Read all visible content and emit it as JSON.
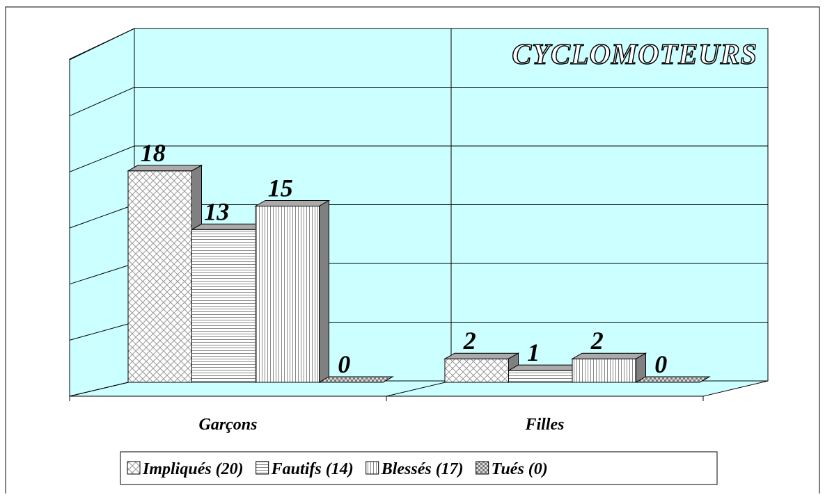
{
  "chart_data": {
    "type": "bar3d",
    "title": "CYCLOMOTEURS",
    "categories": [
      "Garçons",
      "Filles"
    ],
    "series": [
      {
        "name": "Impliqués (20)",
        "color": "#ffffff",
        "pattern": "crosshatch",
        "values": [
          18,
          2
        ]
      },
      {
        "name": "Fautifs (14)",
        "color": "#ffffff",
        "pattern": "horizontal",
        "values": [
          13,
          1
        ]
      },
      {
        "name": "Blessés (17)",
        "color": "#ffffff",
        "pattern": "vertical",
        "values": [
          15,
          2
        ]
      },
      {
        "name": "Tués (0)",
        "color": "#ffffff",
        "pattern": "checker",
        "values": [
          0,
          0
        ]
      }
    ],
    "ylim": [
      0,
      30
    ],
    "yticks": [
      0,
      5,
      10,
      15,
      20,
      25,
      30
    ],
    "grid": true,
    "wall_color": "#ccffff",
    "legend": "bottom"
  }
}
